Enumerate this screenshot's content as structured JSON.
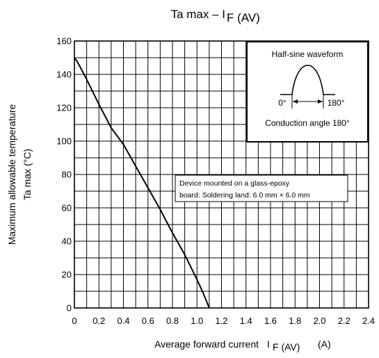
{
  "chart_data": {
    "type": "line",
    "title": "Ta max – I",
    "title_subscript": "F (AV)",
    "xlabel": "Average forward current",
    "xlabel_symbol": "I",
    "xlabel_subscript": "F (AV)",
    "xlabel_unit": "(A)",
    "ylabel_line1": "Maximum allowable temperature",
    "ylabel_line2": "Ta max    (°C)",
    "xlim": [
      0,
      2.4
    ],
    "ylim": [
      0,
      160
    ],
    "x_ticks": [
      "0",
      "0.2",
      "0.4",
      "0.6",
      "0.8",
      "1.0",
      "1.2",
      "1.4",
      "1.6",
      "1.8",
      "2.0",
      "2.2",
      "2.4"
    ],
    "y_ticks": [
      "0",
      "20",
      "40",
      "60",
      "80",
      "100",
      "120",
      "140",
      "160"
    ],
    "x_minor_grid_step": 0.1,
    "y_minor_grid_step": 10,
    "grid": true,
    "legend": "none",
    "series": [
      {
        "x": [
          0,
          0.02,
          0.05,
          0.1,
          0.2,
          0.3,
          0.4,
          0.5,
          0.6,
          0.7,
          0.8,
          0.9,
          1.0,
          1.05,
          1.1
        ],
        "y": [
          150,
          148,
          144,
          137,
          122,
          108,
          98,
          85,
          72,
          59,
          45,
          32,
          17,
          9,
          0
        ]
      }
    ],
    "inset": {
      "title": "Half-sine waveform",
      "left_label": "0°",
      "right_label": "180°",
      "caption": "Conduction angle 180°"
    },
    "note_line1": "Device mounted on a glass-epoxy",
    "note_line2": "board: Soldering land: 6.0 mm × 6.0 mm"
  }
}
